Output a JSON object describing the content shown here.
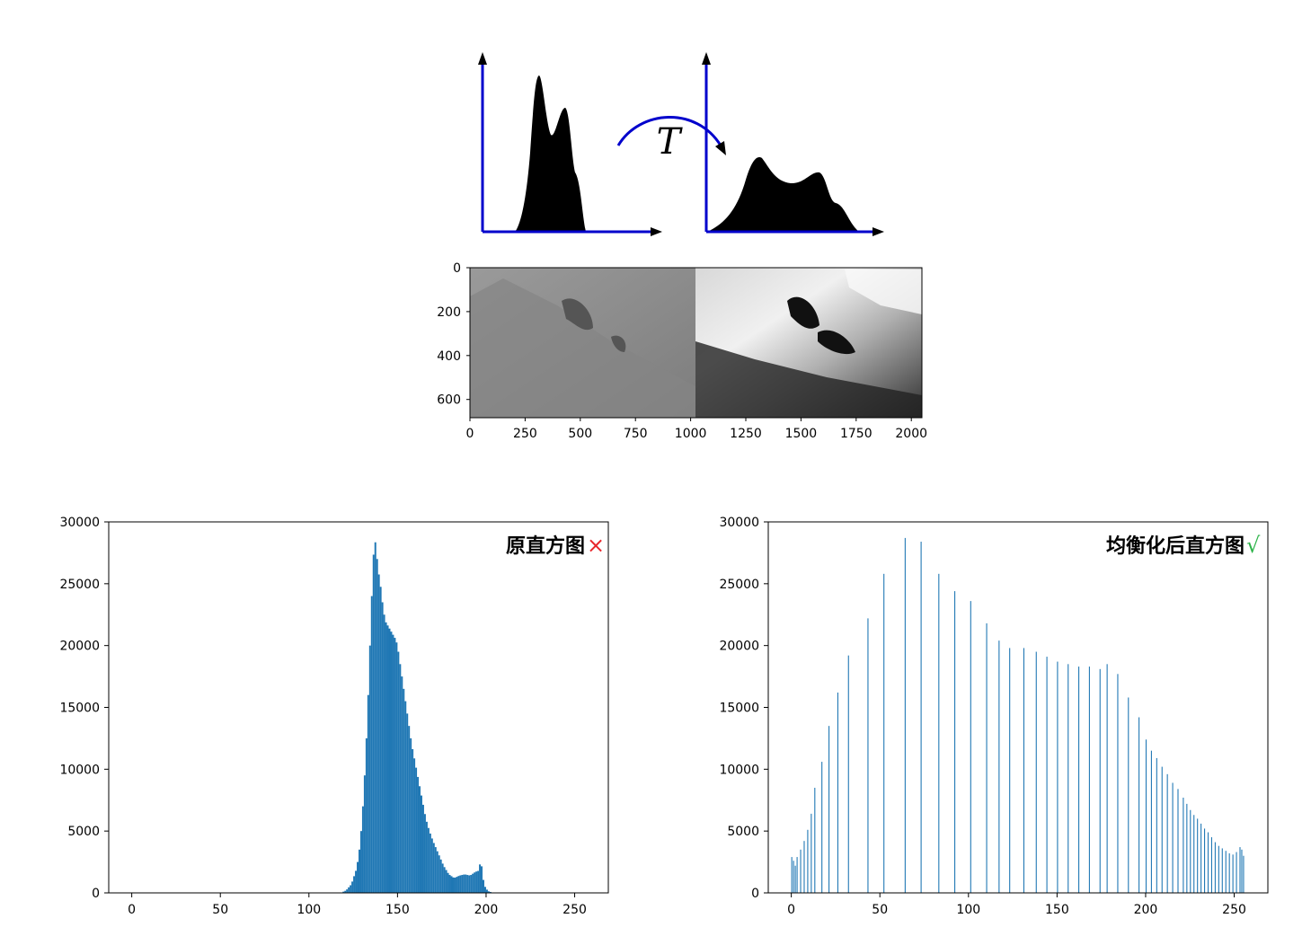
{
  "diagram": {
    "transform_label": "T",
    "axis_color": "#0000cc",
    "arrow_color": "#0000cc"
  },
  "image_panel": {
    "x_ticks": [
      "0",
      "250",
      "500",
      "750",
      "1000",
      "1250",
      "1500",
      "1750",
      "2000"
    ],
    "y_ticks": [
      "0",
      "200",
      "400",
      "600"
    ]
  },
  "chart_data": [
    {
      "type": "bar",
      "title": "原直方图",
      "title_mark": "×",
      "title_mark_color": "#e8262b",
      "bar_color": "#1f77b4",
      "xlim": [
        -13,
        269
      ],
      "ylim": [
        0,
        30000
      ],
      "x_ticks": [
        0,
        50,
        100,
        150,
        200,
        250
      ],
      "y_ticks": [
        0,
        5000,
        10000,
        15000,
        20000,
        25000,
        30000
      ],
      "anchors": [
        [
          118,
          0
        ],
        [
          121,
          200
        ],
        [
          124,
          700
        ],
        [
          127,
          2000
        ],
        [
          129,
          4000
        ],
        [
          131,
          8000
        ],
        [
          133,
          14000
        ],
        [
          134,
          18000
        ],
        [
          135,
          22000
        ],
        [
          136,
          26000
        ],
        [
          137,
          28700
        ],
        [
          138,
          28000
        ],
        [
          139,
          26000
        ],
        [
          140,
          25500
        ],
        [
          141,
          24000
        ],
        [
          142,
          23000
        ],
        [
          143,
          22000
        ],
        [
          145,
          21500
        ],
        [
          147,
          21000
        ],
        [
          149,
          20500
        ],
        [
          150,
          20000
        ],
        [
          151,
          19000
        ],
        [
          152,
          18000
        ],
        [
          154,
          16000
        ],
        [
          156,
          14000
        ],
        [
          158,
          12000
        ],
        [
          160,
          10500
        ],
        [
          162,
          9000
        ],
        [
          164,
          7500
        ],
        [
          166,
          6000
        ],
        [
          168,
          5000
        ],
        [
          170,
          4200
        ],
        [
          173,
          3200
        ],
        [
          176,
          2200
        ],
        [
          179,
          1500
        ],
        [
          182,
          1200
        ],
        [
          185,
          1400
        ],
        [
          188,
          1500
        ],
        [
          191,
          1400
        ],
        [
          194,
          1700
        ],
        [
          196,
          1800
        ],
        [
          197,
          2800
        ],
        [
          198,
          1500
        ],
        [
          199,
          600
        ],
        [
          201,
          150
        ],
        [
          204,
          0
        ]
      ]
    },
    {
      "type": "bar",
      "title": "均衡化后直方图",
      "title_mark": "√",
      "title_mark_color": "#2db34a",
      "bar_color": "#1f77b4",
      "xlim": [
        -13,
        269
      ],
      "ylim": [
        0,
        30000
      ],
      "x_ticks": [
        0,
        50,
        100,
        150,
        200,
        250
      ],
      "y_ticks": [
        0,
        5000,
        10000,
        15000,
        20000,
        25000,
        30000
      ],
      "bars": [
        [
          0,
          2900
        ],
        [
          1,
          2600
        ],
        [
          2,
          2200
        ],
        [
          3,
          2900
        ],
        [
          5,
          3500
        ],
        [
          7,
          4200
        ],
        [
          9,
          5100
        ],
        [
          11,
          6400
        ],
        [
          13,
          8500
        ],
        [
          17,
          10600
        ],
        [
          21,
          13500
        ],
        [
          26,
          16200
        ],
        [
          32,
          19200
        ],
        [
          43,
          22200
        ],
        [
          52,
          25800
        ],
        [
          64,
          28700
        ],
        [
          73,
          28400
        ],
        [
          83,
          25800
        ],
        [
          92,
          24400
        ],
        [
          101,
          23600
        ],
        [
          110,
          21800
        ],
        [
          117,
          20400
        ],
        [
          123,
          19800
        ],
        [
          131,
          19800
        ],
        [
          138,
          19500
        ],
        [
          144,
          19100
        ],
        [
          150,
          18700
        ],
        [
          156,
          18500
        ],
        [
          162,
          18300
        ],
        [
          168,
          18300
        ],
        [
          174,
          18100
        ],
        [
          178,
          18500
        ],
        [
          184,
          17700
        ],
        [
          190,
          15800
        ],
        [
          196,
          14200
        ],
        [
          200,
          12400
        ],
        [
          203,
          11500
        ],
        [
          206,
          10900
        ],
        [
          209,
          10200
        ],
        [
          212,
          9600
        ],
        [
          215,
          8900
        ],
        [
          218,
          8400
        ],
        [
          221,
          7700
        ],
        [
          223,
          7200
        ],
        [
          225,
          6700
        ],
        [
          227,
          6300
        ],
        [
          229,
          6000
        ],
        [
          231,
          5600
        ],
        [
          233,
          5200
        ],
        [
          235,
          4900
        ],
        [
          237,
          4500
        ],
        [
          239,
          4100
        ],
        [
          241,
          3800
        ],
        [
          243,
          3600
        ],
        [
          245,
          3400
        ],
        [
          247,
          3200
        ],
        [
          249,
          3100
        ],
        [
          251,
          3300
        ],
        [
          253,
          3700
        ],
        [
          254,
          3500
        ],
        [
          255,
          3000
        ]
      ]
    }
  ]
}
